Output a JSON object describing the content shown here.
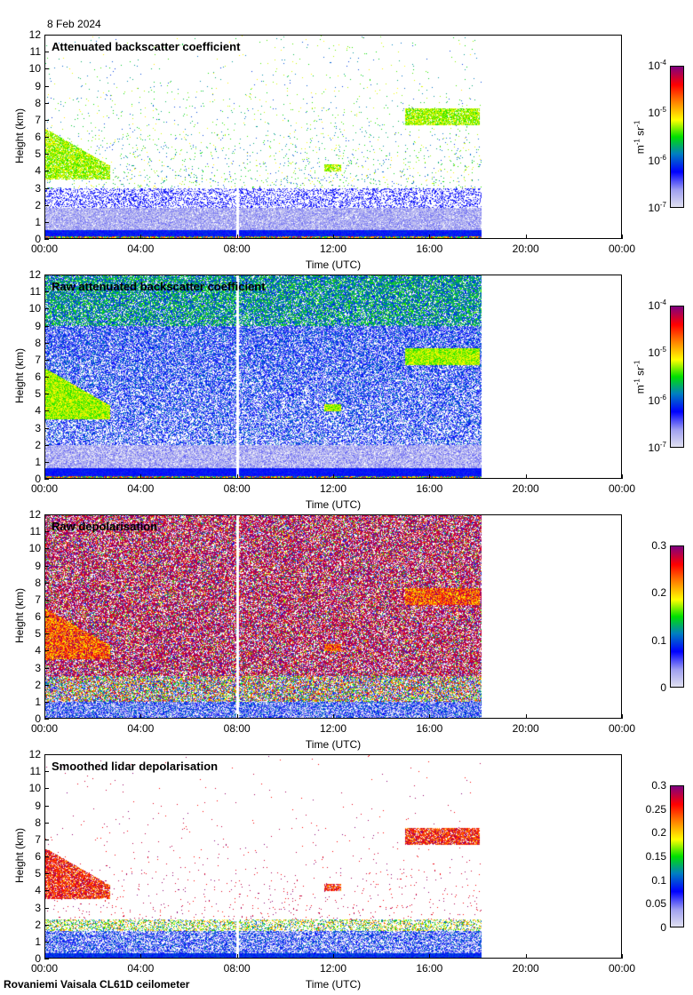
{
  "date": "8 Feb 2024",
  "footer": "Rovaniemi Vaisala CL61D ceilometer",
  "chart_data": {
    "type": "heatmap",
    "x_ticks": [
      "00:00",
      "04:00",
      "08:00",
      "12:00",
      "16:00",
      "20:00",
      "00:00"
    ],
    "y_ticks": [
      "0",
      "1",
      "2",
      "3",
      "4",
      "5",
      "6",
      "7",
      "8",
      "9",
      "10",
      "11",
      "12"
    ],
    "xlabel": "Time (UTC)",
    "ylabel": "Height (km)",
    "xlim_hours": [
      0,
      24
    ],
    "ylim_km": [
      0,
      12
    ],
    "data_end_hours": 18.15,
    "data_gap_hours": 8.0,
    "cloud_layers": [
      {
        "start_h": 0,
        "end_h": 2.7,
        "base_km": 3.5,
        "top_km": 6.5
      },
      {
        "start_h": 11.6,
        "end_h": 12.3,
        "base_km": 4.0,
        "top_km": 4.4
      },
      {
        "start_h": 15.0,
        "end_h": 18.1,
        "base_km": 6.7,
        "top_km": 7.7
      }
    ],
    "panels": [
      {
        "title": "Attenuated backscatter coefficient",
        "kind": "att",
        "colorbar": {
          "scale": "log",
          "range": [
            1e-07,
            0.0001
          ],
          "unit_base": "m",
          "unit_exp1": "-1",
          "unit_mid": " sr",
          "unit_exp2": "-1",
          "ticks": [
            {
              "b": "10",
              "e": "-4"
            },
            {
              "b": "10",
              "e": "-5"
            },
            {
              "b": "10",
              "e": "-6"
            },
            {
              "b": "10",
              "e": "-7"
            }
          ]
        }
      },
      {
        "title": "Raw attenuated backscatter coefficient",
        "kind": "raw",
        "colorbar": {
          "scale": "log",
          "range": [
            1e-07,
            0.0001
          ],
          "unit_base": "m",
          "unit_exp1": "-1",
          "unit_mid": " sr",
          "unit_exp2": "-1",
          "ticks": [
            {
              "b": "10",
              "e": "-4"
            },
            {
              "b": "10",
              "e": "-5"
            },
            {
              "b": "10",
              "e": "-6"
            },
            {
              "b": "10",
              "e": "-7"
            }
          ]
        }
      },
      {
        "title": "Raw depolarisation",
        "kind": "rawdep",
        "colorbar": {
          "scale": "linear",
          "range": [
            0,
            0.3
          ],
          "ticks": [
            "0.3",
            "0.2",
            "0.1",
            "0"
          ]
        }
      },
      {
        "title": "Smoothed lidar depolarisation",
        "kind": "dep",
        "colorbar": {
          "scale": "linear",
          "range": [
            0,
            0.3
          ],
          "ticks": [
            "0.3",
            "0.25",
            "0.2",
            "0.15",
            "0.1",
            "0.05",
            "0"
          ]
        }
      }
    ]
  }
}
